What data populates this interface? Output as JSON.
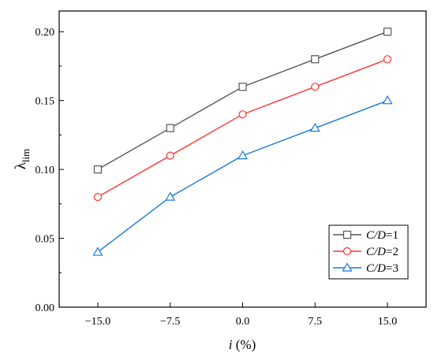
{
  "chart_data": {
    "type": "line",
    "x": [
      -15.0,
      -7.5,
      0.0,
      7.5,
      15.0
    ],
    "x_tick_labels": [
      "−15.0",
      "−7.5",
      "0.0",
      "7.5",
      "15.0"
    ],
    "y_tick_values": [
      0.0,
      0.05,
      0.1,
      0.15,
      0.2
    ],
    "y_tick_labels": [
      "0.00",
      "0.05",
      "0.10",
      "0.15",
      "0.20"
    ],
    "xlim": [
      -19.0,
      19.0
    ],
    "ylim": [
      0.0,
      0.215
    ],
    "xlabel": {
      "italic": "i",
      "text": " (%)"
    },
    "ylabel": {
      "main": "λ",
      "sub": "lim"
    },
    "grid": false,
    "legend_position": "bottom-right",
    "series": [
      {
        "name": "C/D=1",
        "name_italic": "C/D",
        "name_rest": "=1",
        "values": [
          0.1,
          0.13,
          0.16,
          0.18,
          0.2
        ],
        "color": "#555555",
        "marker": "square"
      },
      {
        "name": "C/D=2",
        "name_italic": "C/D",
        "name_rest": "=2",
        "values": [
          0.08,
          0.11,
          0.14,
          0.16,
          0.18
        ],
        "color": "#ff3333",
        "marker": "circle"
      },
      {
        "name": "C/D=3",
        "name_italic": "C/D",
        "name_rest": "=3",
        "values": [
          0.04,
          0.08,
          0.11,
          0.13,
          0.15
        ],
        "color": "#1a78d8",
        "marker": "triangle"
      }
    ]
  }
}
